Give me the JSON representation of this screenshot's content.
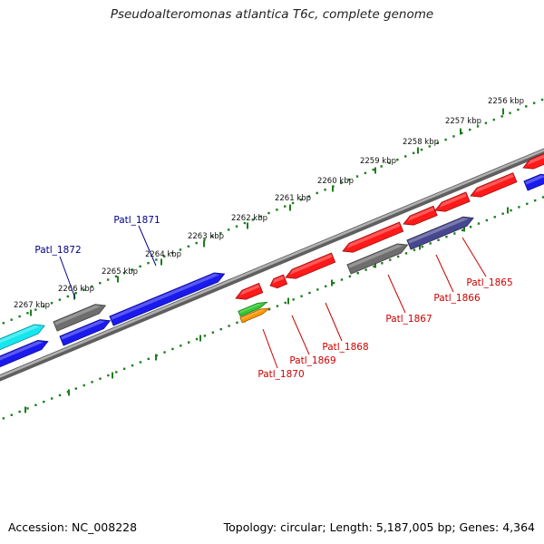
{
  "title": "Pseudoalteromonas atlantica T6c, complete genome",
  "accession": "Accession: NC_008228",
  "summary": "Topology: circular; Length: 5,187,005 bp; Genes: 4,364",
  "colors": {
    "backbone": "#8a8a8a",
    "ticks": "#1e7d1e",
    "label_forward": "#00008b",
    "label_reverse": "#cc0000",
    "red": "#ff1a1a",
    "blue": "#1a1aee",
    "gray": "#6e6e6e",
    "slate": "#47478f",
    "cyan": "#16e6f0",
    "green": "#33cc33",
    "orange": "#ff9900"
  },
  "kbp_labels": [
    "2256 kbp",
    "2257 kbp",
    "2258 kbp",
    "2259 kbp",
    "2260 kbp",
    "2261 kbp",
    "2262 kbp",
    "2263 kbp",
    "2264 kbp",
    "2265 kbp",
    "2266 kbp",
    "2267 kbp"
  ],
  "gene_labels": [
    {
      "text": "Patl_1871",
      "strand": "forward"
    },
    {
      "text": "Patl_1872",
      "strand": "forward"
    },
    {
      "text": "Patl_1865",
      "strand": "reverse"
    },
    {
      "text": "Patl_1866",
      "strand": "reverse"
    },
    {
      "text": "Patl_1867",
      "strand": "reverse"
    },
    {
      "text": "Patl_1868",
      "strand": "reverse"
    },
    {
      "text": "Patl_1869",
      "strand": "reverse"
    },
    {
      "text": "Patl_1870",
      "strand": "reverse"
    }
  ]
}
